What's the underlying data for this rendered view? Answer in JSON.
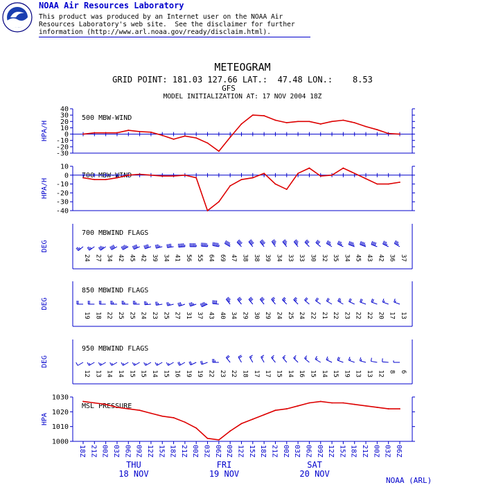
{
  "header": {
    "lab_name": "NOAA Air Resources Laboratory",
    "disclaimer_lines": [
      "This product was produced by an Internet user on the NOAA Air",
      "Resources Laboratory's web site.  See the disclaimer for further",
      "information (http://www.arl.noaa.gov/ready/disclaim.html)."
    ],
    "logo_text": "NOAA"
  },
  "chart_data": {
    "type": "line",
    "title": "METEOGRAM",
    "subtitle": "GRID POINT: 181.03 127.66 LAT.:  47.48 LON.:    8.53",
    "model": "GFS",
    "init": "MODEL INITIALIZATION AT: 17 NOV 2004 18Z",
    "footer": "NOAA (ARL)",
    "colors": {
      "axis": "#0000cc",
      "line": "#dd0000",
      "text": "#000000"
    },
    "x_ticks": [
      "18Z",
      "21Z",
      "00Z",
      "03Z",
      "06Z",
      "09Z",
      "12Z",
      "15Z",
      "18Z",
      "21Z",
      "00Z",
      "03Z",
      "06Z",
      "09Z",
      "12Z",
      "15Z",
      "18Z",
      "21Z",
      "00Z",
      "03Z",
      "06Z",
      "09Z",
      "12Z",
      "15Z",
      "18Z",
      "21Z",
      "00Z",
      "03Z",
      "06Z"
    ],
    "days": [
      {
        "name": "THU",
        "date": "18 NOV"
      },
      {
        "name": "FRI",
        "date": "19 NOV"
      },
      {
        "name": "SAT",
        "date": "20 NOV"
      }
    ],
    "panels": [
      {
        "kind": "line",
        "label": "500 MBW-WIND",
        "ylabel": "HPA/H",
        "ylim": [
          -30,
          40
        ],
        "yticks": [
          40,
          30,
          20,
          10,
          0,
          -10,
          -20,
          -30
        ],
        "zero_line": true,
        "values": [
          0,
          2,
          2,
          2,
          6,
          4,
          3,
          -2,
          -8,
          -3,
          -6,
          -14,
          -27,
          -5,
          16,
          30,
          29,
          22,
          18,
          20,
          20,
          16,
          20,
          22,
          18,
          12,
          7,
          1,
          0
        ]
      },
      {
        "kind": "line",
        "label": "700 MBW-WIND",
        "ylabel": "HPA/H",
        "ylim": [
          -40,
          10
        ],
        "yticks": [
          10,
          0,
          -10,
          -20,
          -30,
          -40
        ],
        "zero_line": true,
        "values": [
          -3,
          -5,
          -5,
          -3,
          0,
          1,
          0,
          -1,
          -1,
          0,
          -3,
          -40,
          -30,
          -12,
          -5,
          -3,
          2,
          -10,
          -16,
          2,
          8,
          -1,
          0,
          8,
          2,
          -4,
          -10,
          -10,
          -8
        ]
      },
      {
        "kind": "wind",
        "label": "700 MBWIND FLAGS",
        "ylabel": "DEG",
        "speeds": [
          24,
          27,
          34,
          42,
          45,
          42,
          39,
          34,
          41,
          56,
          55,
          64,
          69,
          47,
          38,
          38,
          39,
          34,
          33,
          33,
          30,
          32,
          35,
          34,
          45,
          43,
          42,
          36,
          37
        ],
        "directions": [
          230,
          235,
          235,
          240,
          240,
          245,
          250,
          255,
          260,
          265,
          270,
          275,
          280,
          300,
          315,
          320,
          320,
          325,
          320,
          320,
          315,
          310,
          300,
          295,
          290,
          290,
          290,
          295,
          300
        ]
      },
      {
        "kind": "wind",
        "label": "850 MBWIND FLAGS",
        "ylabel": "DEG",
        "speeds": [
          19,
          18,
          22,
          25,
          25,
          24,
          23,
          25,
          27,
          31,
          37,
          43,
          40,
          34,
          29,
          30,
          29,
          24,
          25,
          24,
          22,
          21,
          22,
          23,
          22,
          22,
          20,
          17,
          13
        ],
        "directions": [
          270,
          270,
          270,
          270,
          270,
          270,
          265,
          260,
          255,
          250,
          250,
          245,
          275,
          320,
          320,
          320,
          320,
          320,
          315,
          315,
          310,
          305,
          300,
          300,
          295,
          290,
          290,
          290,
          290
        ]
      },
      {
        "kind": "wind",
        "label": "950 MBWIND FLAGS",
        "ylabel": "DEG",
        "speeds": [
          12,
          13,
          14,
          14,
          15,
          15,
          14,
          15,
          16,
          19,
          19,
          22,
          23,
          22,
          18,
          17,
          17,
          15,
          14,
          16,
          15,
          14,
          15,
          19,
          13,
          13,
          12,
          8,
          6
        ],
        "directions": [
          240,
          240,
          240,
          240,
          240,
          240,
          240,
          240,
          240,
          240,
          245,
          250,
          270,
          320,
          330,
          330,
          330,
          320,
          320,
          315,
          310,
          300,
          295,
          290,
          290,
          285,
          280,
          275,
          270
        ]
      },
      {
        "kind": "line",
        "label": "MSL PRESSURE",
        "ylabel": "HPA",
        "ylim": [
          1000,
          1030
        ],
        "yticks": [
          1030,
          1020,
          1010,
          1000
        ],
        "zero_line": false,
        "values": [
          1027,
          1026,
          1025,
          1023,
          1022,
          1021,
          1019,
          1017,
          1016,
          1013,
          1009,
          1002,
          1001,
          1007,
          1012,
          1015,
          1018,
          1021,
          1022,
          1024,
          1026,
          1027,
          1026,
          1026,
          1025,
          1024,
          1023,
          1022,
          1022
        ]
      }
    ]
  }
}
